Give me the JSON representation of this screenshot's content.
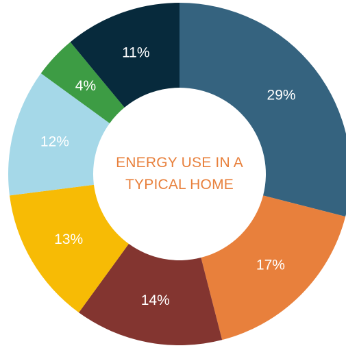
{
  "chart_data": {
    "type": "pie",
    "variant": "donut",
    "title_lines": [
      "ENERGY USE IN A",
      "TYPICAL HOME"
    ],
    "title_color": "#e8803c",
    "legend": "none",
    "slices": [
      {
        "value": 29,
        "label": "29%",
        "color": "#35637f"
      },
      {
        "value": 17,
        "label": "17%",
        "color": "#e8803c"
      },
      {
        "value": 14,
        "label": "14%",
        "color": "#833530"
      },
      {
        "value": 13,
        "label": "13%",
        "color": "#f7bb05"
      },
      {
        "value": 12,
        "label": "12%",
        "color": "#a5d8e8"
      },
      {
        "value": 4,
        "label": "4%",
        "color": "#3d9c44"
      },
      {
        "value": 11,
        "label": "11%",
        "color": "#072a3c"
      }
    ]
  }
}
